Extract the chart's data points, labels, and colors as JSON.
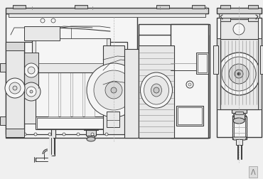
{
  "bg_color": "#f0f0f0",
  "line_color": "#3a3a3a",
  "light_line": "#888888",
  "very_light": "#bbbbbb",
  "fill_light": "#e8e8e8",
  "fill_mid": "#d8d8d8",
  "fill_dark": "#c8c8c8",
  "white_fill": "#f5f5f5",
  "fig_width": 3.7,
  "fig_height": 2.53,
  "dpi": 100
}
